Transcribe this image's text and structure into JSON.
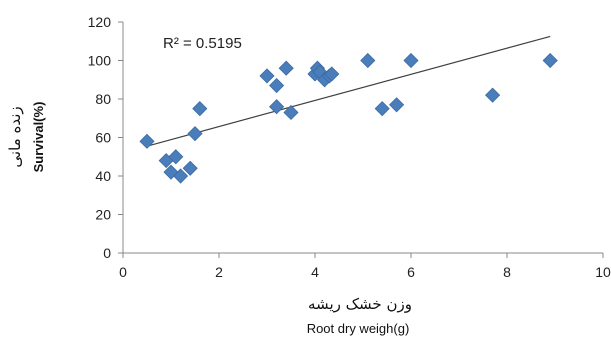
{
  "chart_data": {
    "type": "scatter",
    "xlabel_fa": "وزن خشک ریشه",
    "xlabel": "Root dry weigh(g)",
    "ylabel_fa": "زنده مانی",
    "ylabel": "Survival(%)",
    "xlim": [
      0,
      10
    ],
    "ylim": [
      0,
      120
    ],
    "xticks": [
      0,
      2,
      4,
      6,
      8,
      10
    ],
    "yticks": [
      0,
      20,
      40,
      60,
      80,
      100,
      120
    ],
    "grid": false,
    "legend": "none",
    "marker_color": "#4a7ebb",
    "trendline_color": "#404040",
    "annotation": "R² = 0.5195",
    "trendline": {
      "x": [
        0.5,
        8.9
      ],
      "y": [
        55.5,
        112.5
      ]
    },
    "points": [
      {
        "x": 0.5,
        "y": 58
      },
      {
        "x": 0.9,
        "y": 48
      },
      {
        "x": 1.0,
        "y": 42
      },
      {
        "x": 1.1,
        "y": 50
      },
      {
        "x": 1.2,
        "y": 40
      },
      {
        "x": 1.4,
        "y": 44
      },
      {
        "x": 1.5,
        "y": 62
      },
      {
        "x": 1.6,
        "y": 75
      },
      {
        "x": 3.0,
        "y": 92
      },
      {
        "x": 3.2,
        "y": 87
      },
      {
        "x": 3.2,
        "y": 76
      },
      {
        "x": 3.4,
        "y": 96
      },
      {
        "x": 3.5,
        "y": 73
      },
      {
        "x": 4.0,
        "y": 93
      },
      {
        "x": 4.05,
        "y": 96
      },
      {
        "x": 4.1,
        "y": 94
      },
      {
        "x": 4.2,
        "y": 90
      },
      {
        "x": 4.3,
        "y": 92
      },
      {
        "x": 4.35,
        "y": 93
      },
      {
        "x": 5.1,
        "y": 100
      },
      {
        "x": 5.4,
        "y": 75
      },
      {
        "x": 5.7,
        "y": 77
      },
      {
        "x": 6.0,
        "y": 100
      },
      {
        "x": 7.7,
        "y": 82
      },
      {
        "x": 8.9,
        "y": 100
      }
    ]
  }
}
